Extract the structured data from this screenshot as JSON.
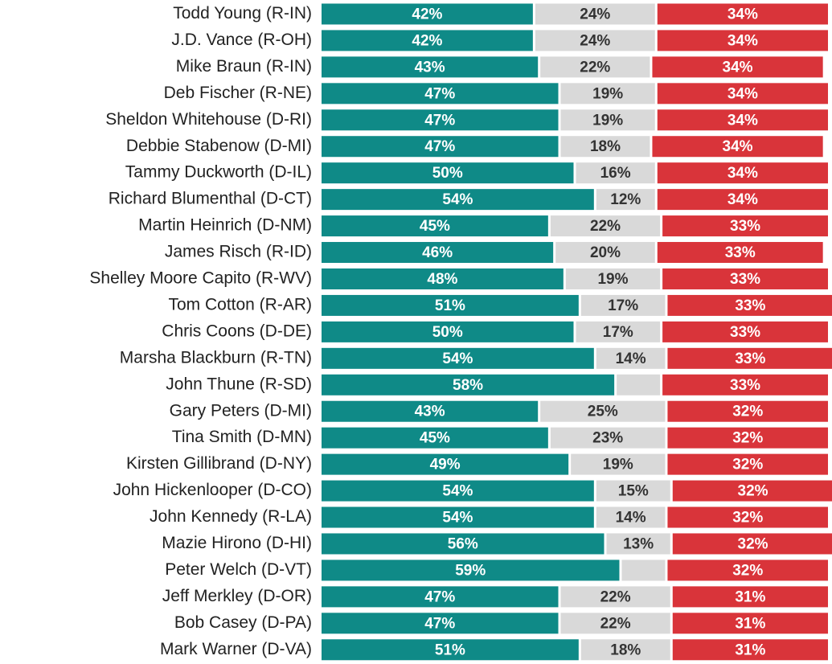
{
  "chart_data": {
    "type": "stacked-bar-horizontal",
    "categories": [
      "Todd Young (R-IN)",
      "J.D. Vance (R-OH)",
      "Mike Braun (R-IN)",
      "Deb Fischer (R-NE)",
      "Sheldon Whitehouse (D-RI)",
      "Debbie Stabenow (D-MI)",
      "Tammy Duckworth (D-IL)",
      "Richard Blumenthal (D-CT)",
      "Martin Heinrich (D-NM)",
      "James Risch (R-ID)",
      "Shelley Moore Capito (R-WV)",
      "Tom Cotton (R-AR)",
      "Chris Coons (D-DE)",
      "Marsha Blackburn (R-TN)",
      "John Thune (R-SD)",
      "Gary Peters (D-MI)",
      "Tina Smith (D-MN)",
      "Kirsten Gillibrand (D-NY)",
      "John Hickenlooper (D-CO)",
      "John Kennedy (R-LA)",
      "Mazie Hirono (D-HI)",
      "Peter Welch (D-VT)",
      "Jeff Merkley (D-OR)",
      "Bob Casey (D-PA)",
      "Mark Warner (D-VA)"
    ],
    "series": [
      {
        "color": "#0f8a87",
        "label_color": "#ffffff",
        "values": [
          42,
          42,
          43,
          47,
          47,
          47,
          50,
          54,
          45,
          46,
          48,
          51,
          50,
          54,
          58,
          43,
          45,
          49,
          54,
          54,
          56,
          59,
          47,
          47,
          51
        ],
        "value_labels": [
          "42%",
          "42%",
          "43%",
          "47%",
          "47%",
          "47%",
          "50%",
          "54%",
          "45%",
          "46%",
          "48%",
          "51%",
          "50%",
          "54%",
          "58%",
          "43%",
          "45%",
          "49%",
          "54%",
          "54%",
          "56%",
          "59%",
          "47%",
          "47%",
          "51%"
        ]
      },
      {
        "color": "#d9d9d9",
        "label_color": "#333333",
        "values": [
          24,
          24,
          22,
          19,
          19,
          18,
          16,
          12,
          22,
          20,
          19,
          17,
          17,
          14,
          9,
          25,
          23,
          19,
          15,
          14,
          13,
          9,
          22,
          22,
          18
        ],
        "value_labels": [
          "24%",
          "24%",
          "22%",
          "19%",
          "19%",
          "18%",
          "16%",
          "12%",
          "22%",
          "20%",
          "19%",
          "17%",
          "17%",
          "14%",
          null,
          "25%",
          "23%",
          "19%",
          "15%",
          "14%",
          "13%",
          null,
          "22%",
          "22%",
          "18%"
        ]
      },
      {
        "color": "#d9343a",
        "label_color": "#ffffff",
        "values": [
          34,
          34,
          34,
          34,
          34,
          34,
          34,
          34,
          33,
          33,
          33,
          33,
          33,
          33,
          33,
          32,
          32,
          32,
          32,
          32,
          32,
          32,
          31,
          31,
          31
        ],
        "value_labels": [
          "34%",
          "34%",
          "34%",
          "34%",
          "34%",
          "34%",
          "34%",
          "34%",
          "33%",
          "33%",
          "33%",
          "33%",
          "33%",
          "33%",
          "33%",
          "32%",
          "32%",
          "32%",
          "32%",
          "32%",
          "32%",
          "32%",
          "31%",
          "31%",
          "31%"
        ]
      }
    ],
    "xlim": [
      0,
      100
    ]
  }
}
